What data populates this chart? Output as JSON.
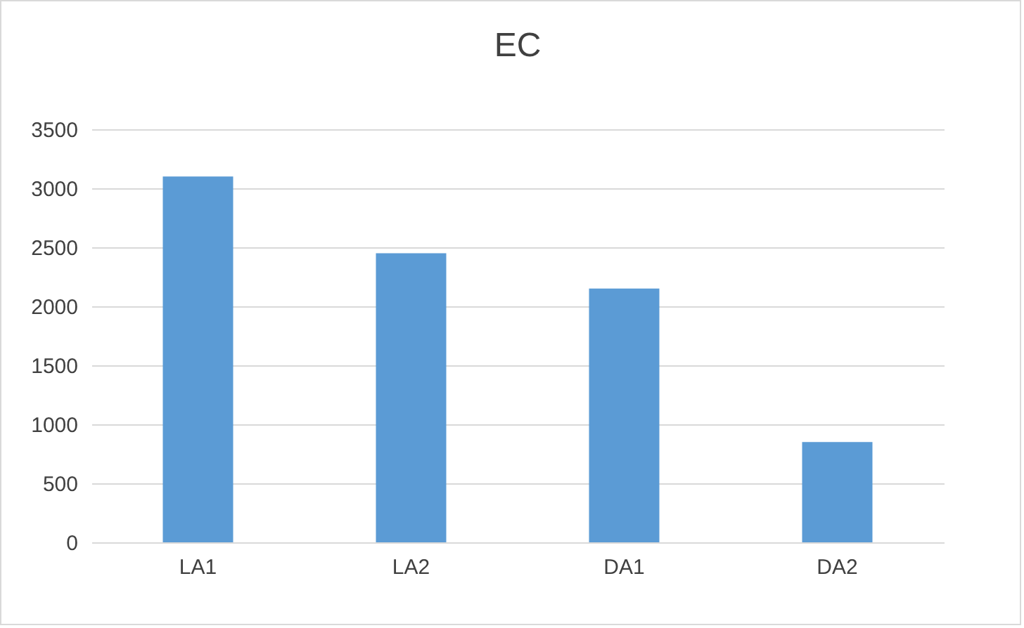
{
  "chart_data": {
    "type": "bar",
    "title": "EC",
    "categories": [
      "LA1",
      "LA2",
      "DA1",
      "DA2"
    ],
    "values": [
      3100,
      2450,
      2150,
      850
    ],
    "color": "#5b9bd5",
    "ylim": [
      0,
      3500
    ],
    "yticks": [
      0,
      500,
      1000,
      1500,
      2000,
      2500,
      3000,
      3500
    ],
    "grid": "y"
  }
}
